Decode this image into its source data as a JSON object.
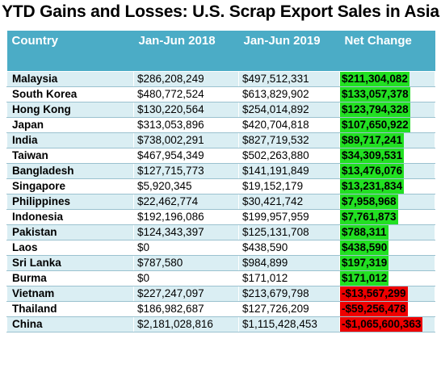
{
  "title": "YTD Gains and Losses: U.S. Scrap Export Sales in Asia",
  "colors": {
    "header_bg": "#4bacc6",
    "band_row": "#daeef3",
    "positive": "#22e022",
    "negative": "#ee0000"
  },
  "headers": [
    "Country",
    "Jan-Jun 2018",
    "Jan-Jun 2019",
    "Net Change"
  ],
  "rows": [
    {
      "country": "Malaysia",
      "y2018": "$286,208,249",
      "y2019": "$497,512,331",
      "net": "$211,304,082",
      "sign": "positive"
    },
    {
      "country": "South Korea",
      "y2018": "$480,772,524",
      "y2019": "$613,829,902",
      "net": "$133,057,378",
      "sign": "positive"
    },
    {
      "country": "Hong Kong",
      "y2018": "$130,220,564",
      "y2019": "$254,014,892",
      "net": "$123,794,328",
      "sign": "positive"
    },
    {
      "country": "Japan",
      "y2018": "$313,053,896",
      "y2019": "$420,704,818",
      "net": "$107,650,922",
      "sign": "positive"
    },
    {
      "country": "India",
      "y2018": "$738,002,291",
      "y2019": "$827,719,532",
      "net": "$89,717,241",
      "sign": "positive"
    },
    {
      "country": "Taiwan",
      "y2018": "$467,954,349",
      "y2019": "$502,263,880",
      "net": "$34,309,531",
      "sign": "positive"
    },
    {
      "country": "Bangladesh",
      "y2018": "$127,715,773",
      "y2019": "$141,191,849",
      "net": "$13,476,076",
      "sign": "positive"
    },
    {
      "country": "Singapore",
      "y2018": "$5,920,345",
      "y2019": "$19,152,179",
      "net": "$13,231,834",
      "sign": "positive"
    },
    {
      "country": "Philippines",
      "y2018": "$22,462,774",
      "y2019": "$30,421,742",
      "net": "$7,958,968",
      "sign": "positive"
    },
    {
      "country": "Indonesia",
      "y2018": "$192,196,086",
      "y2019": "$199,957,959",
      "net": "$7,761,873",
      "sign": "positive"
    },
    {
      "country": "Pakistan",
      "y2018": "$124,343,397",
      "y2019": "$125,131,708",
      "net": "$788,311",
      "sign": "positive"
    },
    {
      "country": "Laos",
      "y2018": "$0",
      "y2019": "$438,590",
      "net": "$438,590",
      "sign": "positive"
    },
    {
      "country": "Sri Lanka",
      "y2018": "$787,580",
      "y2019": "$984,899",
      "net": "$197,319",
      "sign": "positive"
    },
    {
      "country": "Burma",
      "y2018": "$0",
      "y2019": "$171,012",
      "net": "$171,012",
      "sign": "positive"
    },
    {
      "country": "Vietnam",
      "y2018": "$227,247,097",
      "y2019": "$213,679,798",
      "net": "-$13,567,299",
      "sign": "negative"
    },
    {
      "country": "Thailand",
      "y2018": "$186,982,687",
      "y2019": "$127,726,209",
      "net": "-$59,256,478",
      "sign": "negative"
    },
    {
      "country": "China",
      "y2018": "$2,181,028,816",
      "y2019": "$1,115,428,453",
      "net": "-$1,065,600,363",
      "sign": "negative"
    }
  ]
}
